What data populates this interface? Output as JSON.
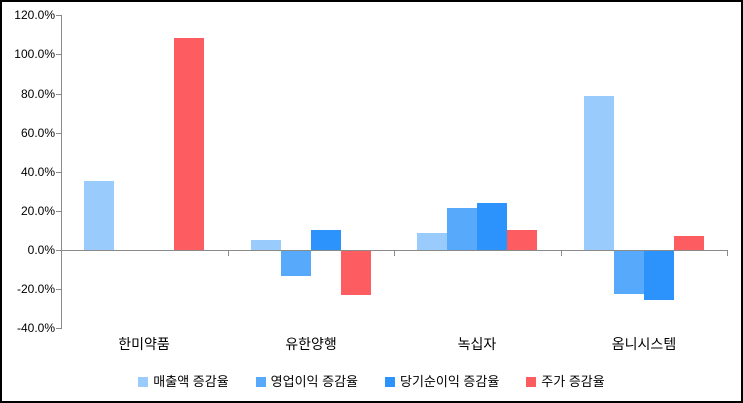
{
  "colors": {
    "background": "#ffffff",
    "frame_border": "#000000",
    "axis": "#8a8a8a",
    "text": "#000000"
  },
  "chart_data": {
    "type": "bar",
    "title": "",
    "xlabel": "",
    "ylabel": "",
    "grid": false,
    "legend_position": "bottom",
    "ylim": [
      -40,
      120
    ],
    "ytick_step": 20,
    "ytick_labels": [
      "120.0%",
      "100.0%",
      "80.0%",
      "60.0%",
      "40.0%",
      "20.0%",
      "0.0%",
      "-20.0%",
      "-40.0%"
    ],
    "ytick_values": [
      120,
      100,
      80,
      60,
      40,
      20,
      0,
      -20,
      -40
    ],
    "categories": [
      "한미약품",
      "유한양행",
      "녹십자",
      "옴니시스템"
    ],
    "series": [
      {
        "name": "매출액 증감율",
        "color": "#99CBFC",
        "values": [
          35.3,
          5.0,
          8.5,
          78.5
        ]
      },
      {
        "name": "영업이익 증감율",
        "color": "#57A9FB",
        "values": [
          0,
          -13.0,
          21.5,
          -22.0
        ]
      },
      {
        "name": "당기순이익 증감율",
        "color": "#2B93FB",
        "values": [
          0,
          10.0,
          24.0,
          -25.0
        ]
      },
      {
        "name": "주가 증감율",
        "color": "#FD5C61",
        "values": [
          108.5,
          -22.5,
          10.3,
          7.3
        ]
      }
    ]
  }
}
